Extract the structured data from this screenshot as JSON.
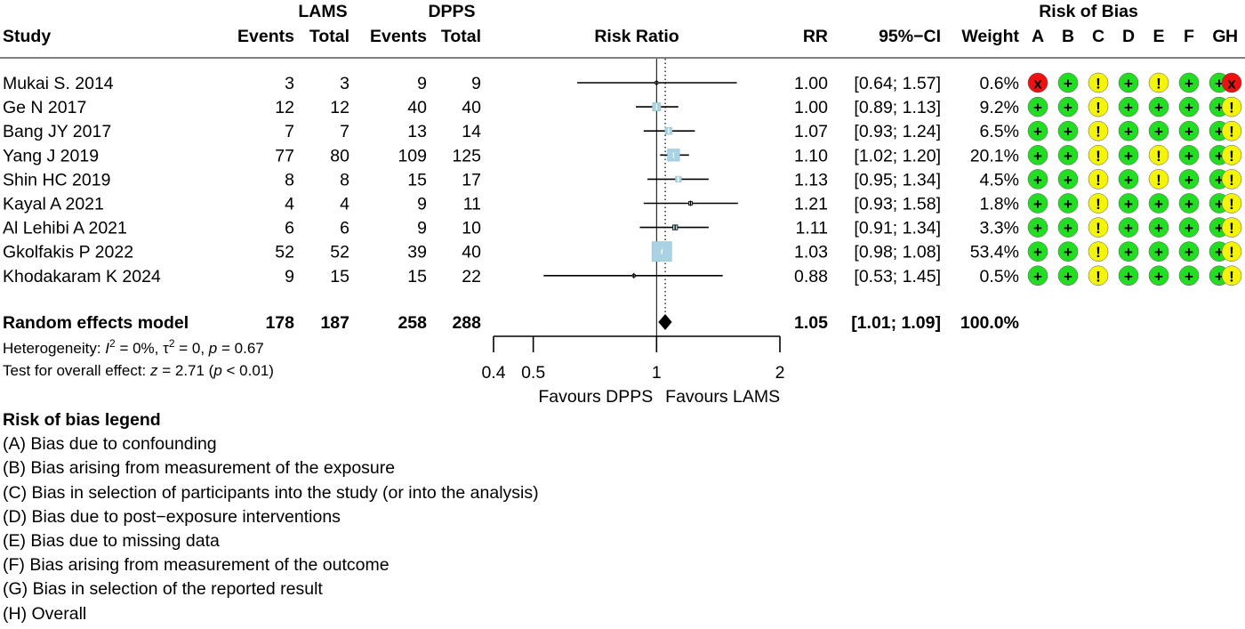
{
  "header": {
    "lams_group": "LAMS",
    "dpps_group": "DPPS",
    "study": "Study",
    "events": "Events",
    "total": "Total",
    "risk_ratio": "Risk Ratio",
    "rr": "RR",
    "ci": "95%−CI",
    "weight": "Weight",
    "risk_of_bias": "Risk of Bias",
    "rob_domains": [
      "A",
      "B",
      "C",
      "D",
      "E",
      "F",
      "G",
      "H"
    ]
  },
  "rob_colors": {
    "+": "#22dd22",
    "!": "#f4f40a",
    "x": "#ee1111"
  },
  "chart_data": {
    "type": "forest",
    "x_scale": "log",
    "xticks": [
      0.4,
      0.5,
      1,
      2
    ],
    "xtick_labels": [
      "0.4",
      "0.5",
      "1",
      "2"
    ],
    "xlim": [
      0.4,
      2
    ],
    "null_line": 1,
    "summary_line": 1.05,
    "favours_left": "Favours DPPS",
    "favours_right": "Favours LAMS",
    "studies": [
      {
        "study": "Mukai S. 2014",
        "lams_events": "3",
        "lams_total": "3",
        "dpps_events": "9",
        "dpps_total": "9",
        "rr": 1.0,
        "lo": 0.64,
        "hi": 1.57,
        "rr_text": "1.00",
        "ci_text": "[0.64; 1.57]",
        "weight": 0.6,
        "weight_text": "0.6%",
        "rob": [
          "x",
          "+",
          "!",
          "+",
          "!",
          "+",
          "+",
          "x"
        ]
      },
      {
        "study": "Ge N 2017",
        "lams_events": "12",
        "lams_total": "12",
        "dpps_events": "40",
        "dpps_total": "40",
        "rr": 1.0,
        "lo": 0.89,
        "hi": 1.13,
        "rr_text": "1.00",
        "ci_text": "[0.89; 1.13]",
        "weight": 9.2,
        "weight_text": "9.2%",
        "rob": [
          "+",
          "+",
          "!",
          "+",
          "+",
          "+",
          "+",
          "!"
        ]
      },
      {
        "study": "Bang JY 2017",
        "lams_events": "7",
        "lams_total": "7",
        "dpps_events": "13",
        "dpps_total": "14",
        "rr": 1.07,
        "lo": 0.93,
        "hi": 1.24,
        "rr_text": "1.07",
        "ci_text": "[0.93; 1.24]",
        "weight": 6.5,
        "weight_text": "6.5%",
        "rob": [
          "+",
          "+",
          "!",
          "+",
          "+",
          "+",
          "+",
          "!"
        ]
      },
      {
        "study": "Yang J 2019",
        "lams_events": "77",
        "lams_total": "80",
        "dpps_events": "109",
        "dpps_total": "125",
        "rr": 1.1,
        "lo": 1.02,
        "hi": 1.2,
        "rr_text": "1.10",
        "ci_text": "[1.02; 1.20]",
        "weight": 20.1,
        "weight_text": "20.1%",
        "rob": [
          "+",
          "+",
          "!",
          "+",
          "!",
          "+",
          "+",
          "!"
        ]
      },
      {
        "study": "Shin HC 2019",
        "lams_events": "8",
        "lams_total": "8",
        "dpps_events": "15",
        "dpps_total": "17",
        "rr": 1.13,
        "lo": 0.95,
        "hi": 1.34,
        "rr_text": "1.13",
        "ci_text": "[0.95; 1.34]",
        "weight": 4.5,
        "weight_text": "4.5%",
        "rob": [
          "+",
          "+",
          "!",
          "+",
          "!",
          "+",
          "+",
          "!"
        ]
      },
      {
        "study": "Kayal A 2021",
        "lams_events": "4",
        "lams_total": "4",
        "dpps_events": "9",
        "dpps_total": "11",
        "rr": 1.21,
        "lo": 0.93,
        "hi": 1.58,
        "rr_text": "1.21",
        "ci_text": "[0.93; 1.58]",
        "weight": 1.8,
        "weight_text": "1.8%",
        "rob": [
          "+",
          "+",
          "!",
          "+",
          "+",
          "+",
          "+",
          "!"
        ]
      },
      {
        "study": "Al Lehibi A 2021",
        "lams_events": "6",
        "lams_total": "6",
        "dpps_events": "9",
        "dpps_total": "10",
        "rr": 1.11,
        "lo": 0.91,
        "hi": 1.34,
        "rr_text": "1.11",
        "ci_text": "[0.91; 1.34]",
        "weight": 3.3,
        "weight_text": "3.3%",
        "rob": [
          "+",
          "+",
          "!",
          "+",
          "+",
          "+",
          "+",
          "!"
        ]
      },
      {
        "study": "Gkolfakis P 2022",
        "lams_events": "52",
        "lams_total": "52",
        "dpps_events": "39",
        "dpps_total": "40",
        "rr": 1.03,
        "lo": 0.98,
        "hi": 1.08,
        "rr_text": "1.03",
        "ci_text": "[0.98; 1.08]",
        "weight": 53.4,
        "weight_text": "53.4%",
        "rob": [
          "+",
          "+",
          "!",
          "+",
          "+",
          "+",
          "+",
          "!"
        ]
      },
      {
        "study": "Khodakaram K 2024",
        "lams_events": "9",
        "lams_total": "15",
        "dpps_events": "15",
        "dpps_total": "22",
        "rr": 0.88,
        "lo": 0.53,
        "hi": 1.45,
        "rr_text": "0.88",
        "ci_text": "[0.53; 1.45]",
        "weight": 0.5,
        "weight_text": "0.5%",
        "rob": [
          "+",
          "+",
          "!",
          "+",
          "+",
          "+",
          "+",
          "!"
        ]
      }
    ],
    "summary": {
      "label": "Random effects model",
      "lams_events": "178",
      "lams_total": "187",
      "dpps_events": "258",
      "dpps_total": "288",
      "rr": 1.05,
      "lo": 1.01,
      "hi": 1.09,
      "rr_text": "1.05",
      "ci_text": "[1.01; 1.09]",
      "weight_text": "100.0%"
    },
    "heterogeneity": {
      "label": "Heterogeneity: ",
      "I": "I",
      "I_sup": "2",
      "rest1": " = 0%, τ",
      "tau_sup": "2",
      "rest2": " = 0, ",
      "p": "p",
      "rest3": " = 0.67"
    },
    "overall_effect": {
      "label": "Test for overall effect: ",
      "z": "z",
      "rest1": " = 2.71 (",
      "p": "p",
      "rest2": " < 0.01)"
    }
  },
  "rob_legend": {
    "title": "Risk of bias legend",
    "items": [
      "(A) Bias due to confounding",
      "(B) Bias arising from measurement of the exposure",
      "(C) Bias in selection of participants into the study (or into the analysis)",
      "(D) Bias due to post−exposure interventions",
      "(E) Bias due to missing data",
      "(F) Bias arising from measurement of the outcome",
      "(G) Bias in selection of the reported result",
      "(H) Overall"
    ]
  }
}
